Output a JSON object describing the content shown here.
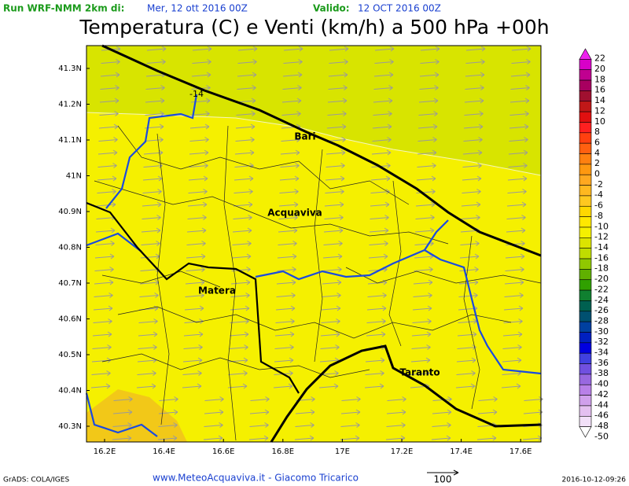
{
  "header": {
    "run_label": "Run WRF-NMM 2km di:",
    "run_date": "Mer, 12 ott 2016 00Z",
    "valid_label": "Valido:",
    "valid_date": "12 OCT 2016 00Z"
  },
  "title": "Temperatura (C) e Venti (km/h) a 500 hPa +00h",
  "map": {
    "lat_labels": [
      "41.3N",
      "41.2N",
      "41.1N",
      "41N",
      "40.9N",
      "40.8N",
      "40.7N",
      "40.6N",
      "40.5N",
      "40.4N",
      "40.3N"
    ],
    "lon_labels": [
      "16.2E",
      "16.4E",
      "16.6E",
      "16.8E",
      "17E",
      "17.2E",
      "17.4E",
      "17.6E"
    ],
    "places": [
      "Bari",
      "Acquaviva",
      "Matera",
      "Taranto"
    ],
    "contour_label": "-14"
  },
  "colorbar": {
    "values": [
      22,
      20,
      18,
      16,
      14,
      12,
      10,
      8,
      6,
      4,
      2,
      0,
      -2,
      -4,
      -6,
      -8,
      -10,
      -12,
      -14,
      -16,
      -18,
      -20,
      -22,
      -24,
      -26,
      -28,
      -30,
      -32,
      -34,
      -36,
      -38,
      -40,
      -42,
      -44,
      -46,
      -48,
      -50
    ],
    "colors": [
      "#ee22ee",
      "#d800c8",
      "#c00090",
      "#a80060",
      "#a01030",
      "#c01818",
      "#e01010",
      "#ff2020",
      "#ff4010",
      "#ff6010",
      "#ff8010",
      "#ff9810",
      "#ffa820",
      "#ffb820",
      "#ffc820",
      "#ffd800",
      "#ffe800",
      "#f5f000",
      "#dce400",
      "#c0dc00",
      "#90c800",
      "#60b000",
      "#30a000",
      "#108030",
      "#006050",
      "#005070",
      "#0040a0",
      "#0020c0",
      "#0000e0",
      "#4040e0",
      "#7050e0",
      "#9868e0",
      "#b880e8",
      "#d0a0ec",
      "#e4c0f0",
      "#f2e0f8",
      "#ffffff"
    ]
  },
  "footer": {
    "software": "GrADS: COLA/IGES",
    "credit": "www.MeteoAcquaviva.it - Giacomo Tricarico",
    "vector_scale": "100",
    "timestamp": "2016-10-12-09:26"
  }
}
